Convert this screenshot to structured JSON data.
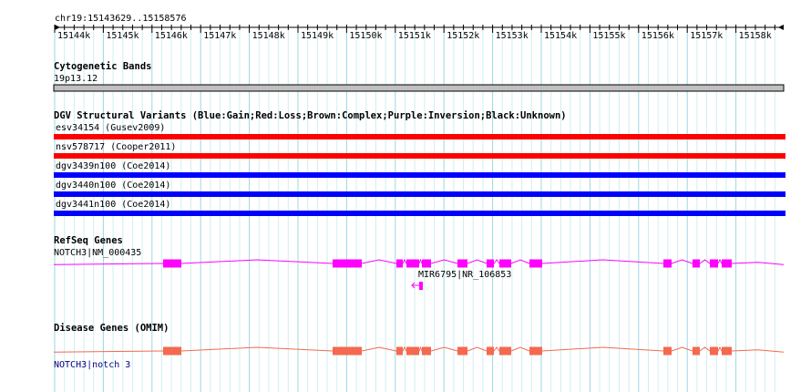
{
  "view": {
    "range_label": "chr19:15143629..15158576",
    "ruler_ticks": [
      "15144k",
      "15145k",
      "15146k",
      "15147k",
      "15148k",
      "15149k",
      "15150k",
      "15151k",
      "15152k",
      "15153k",
      "15154k",
      "15155k",
      "15156k",
      "15157k",
      "15158k"
    ]
  },
  "tracks": {
    "cytoband": {
      "title": "Cytogenetic Bands",
      "band_label": "19p13.12",
      "band_color": "#c0c0c0"
    },
    "dgv": {
      "title": "DGV Structural Variants (Blue:Gain;Red:Loss;Brown:Complex;Purple:Inversion;Black:Unknown)",
      "features": [
        {
          "label": "esv34154 (Gusev2009)",
          "color": "#ff0000"
        },
        {
          "label": "nsv578717 (Cooper2011)",
          "color": "#ff0000"
        },
        {
          "label": "dgv3439n100 (Coe2014)",
          "color": "#0000ff"
        },
        {
          "label": "dgv3440n100 (Coe2014)",
          "color": "#0000ff"
        },
        {
          "label": "dgv3441n100 (Coe2014)",
          "color": "#0000ff"
        }
      ]
    },
    "refseq": {
      "title": "RefSeq Genes",
      "gene_label": "NOTCH3|NM_000435",
      "mir_label": "MIR6795|NR_106853",
      "color": "#ff00ff"
    },
    "omim": {
      "title": "Disease Genes (OMIM)",
      "gene_label": "NOTCH3|notch 3",
      "color": "#f4694f",
      "label_color": "#000080"
    }
  }
}
